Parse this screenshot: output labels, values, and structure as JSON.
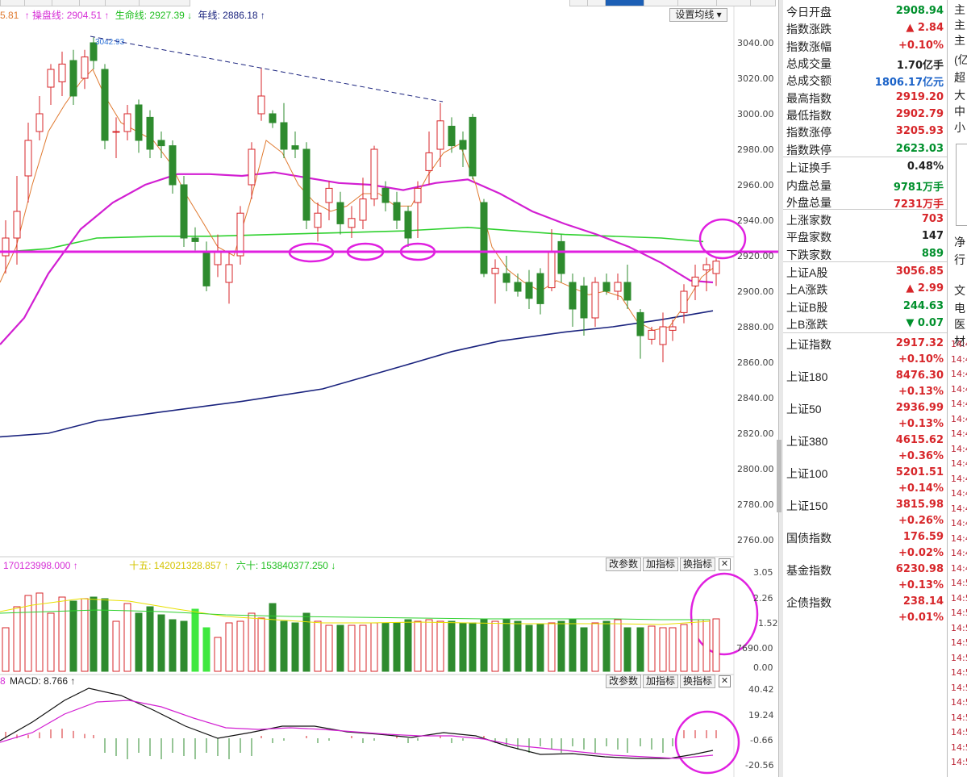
{
  "ma_legend": {
    "prefix": "5.81",
    "caopan": "↑ 操盘线: 2904.51 ↑",
    "shengming": "生命线: 2927.39 ↓",
    "nianxian": "年线: 2886.18 ↑"
  },
  "set_ma_label": "设置均线",
  "peak_annotation": "3042.93",
  "price_axis": [
    "3040.00",
    "3020.00",
    "3000.00",
    "2980.00",
    "2960.00",
    "2940.00",
    "2920.00",
    "2900.00",
    "2880.00",
    "2860.00",
    "2840.00",
    "2820.00",
    "2800.00",
    "2780.00",
    "2760.00"
  ],
  "volume_legend": {
    "main": "170123998.000 ↑",
    "ma15": "十五: 142021328.857 ↑",
    "ma60": "六十: 153840377.250 ↓"
  },
  "volume_axis": [
    "3.05",
    "2.26",
    "1.52",
    "7690.00",
    "0.00"
  ],
  "macd_legend": {
    "prefix": "8",
    "macd": "MACD: 8.766 ↑"
  },
  "macd_axis": [
    "40.42",
    "19.24",
    "-0.66",
    "-20.56"
  ],
  "panel_buttons": {
    "params": "改参数",
    "add": "加指标",
    "switch": "换指标",
    "close": "✕"
  },
  "info_rows": [
    {
      "label": "今日开盘",
      "value": "2908.94",
      "color": "green"
    },
    {
      "label": "指数涨跌",
      "value": "▲ 2.84",
      "color": "red"
    },
    {
      "label": "指数涨幅",
      "value": "+0.10%",
      "color": "red"
    },
    {
      "label": "总成交量",
      "value": "1.70亿手",
      "color": "dark"
    },
    {
      "label": "总成交额",
      "value": "1806.17亿元",
      "color": "blue"
    },
    {
      "label": "最高指数",
      "value": "2919.20",
      "color": "red"
    },
    {
      "label": "最低指数",
      "value": "2902.79",
      "color": "red"
    },
    {
      "label": "指数涨停",
      "value": "3205.93",
      "color": "red"
    },
    {
      "label": "指数跌停",
      "value": "2623.03",
      "color": "green"
    },
    {
      "label": "上证换手",
      "value": "0.48%",
      "color": "dark"
    },
    {
      "label": "内盘总量",
      "value": "9781万手",
      "color": "green"
    },
    {
      "label": "外盘总量",
      "value": "7231万手",
      "color": "red"
    },
    {
      "label": "上涨家数",
      "value": "703",
      "color": "red"
    },
    {
      "label": "平盘家数",
      "value": "147",
      "color": "dark"
    },
    {
      "label": "下跌家数",
      "value": "889",
      "color": "green"
    },
    {
      "label": "上证A股",
      "value": "3056.85",
      "color": "red"
    },
    {
      "label": "上A涨跌",
      "value": "▲ 2.99",
      "color": "red"
    },
    {
      "label": "上证B股",
      "value": "244.63",
      "color": "green"
    },
    {
      "label": "上B涨跌",
      "value": "▼ 0.07",
      "color": "green"
    }
  ],
  "index_rows": [
    {
      "label": "上证指数",
      "value": "2917.32",
      "change": "+0.10%"
    },
    {
      "label": "上证180",
      "value": "8476.30",
      "change": "+0.13%"
    },
    {
      "label": "上证50",
      "value": "2936.99",
      "change": "+0.13%"
    },
    {
      "label": "上证380",
      "value": "4615.62",
      "change": "+0.36%"
    },
    {
      "label": "上证100",
      "value": "5201.51",
      "change": "+0.14%"
    },
    {
      "label": "上证150",
      "value": "3815.98",
      "change": "+0.26%"
    },
    {
      "label": "国债指数",
      "value": "176.59",
      "change": "+0.02%"
    },
    {
      "label": "基金指数",
      "value": "6230.98",
      "change": "+0.13%"
    },
    {
      "label": "企债指数",
      "value": "238.14",
      "change": "+0.01%"
    }
  ],
  "right_strip": {
    "labels": [
      "主",
      "主",
      "主",
      "(亿",
      "超",
      "大",
      "中",
      "小",
      "净",
      "行",
      "文",
      "电",
      "医",
      "材"
    ],
    "times": [
      "14:4",
      "14:4",
      "14:4",
      "14:4",
      "14:4",
      "14:4",
      "14:4",
      "14:4",
      "14:4",
      "14:4",
      "14:4",
      "14:4",
      "14:4",
      "14:4",
      "14:4",
      "14:4",
      "14:5",
      "14:5",
      "14:5",
      "14:5",
      "14:5",
      "14:5",
      "14:5",
      "14:5",
      "14:5",
      "14:5",
      "14:5",
      "14:5",
      "14:5"
    ]
  }
}
